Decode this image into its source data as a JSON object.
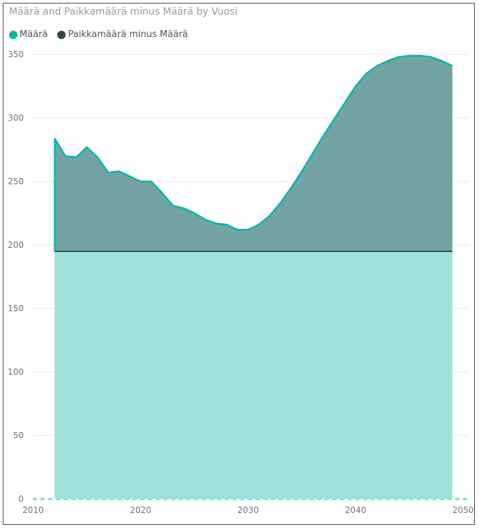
{
  "chart_data": {
    "type": "area",
    "title": "Määrä and Paikkamäärä minus Määrä by Vuosi",
    "xlabel": "",
    "ylabel": "",
    "xlim": [
      2009,
      2050.5
    ],
    "ylim": [
      0,
      350
    ],
    "x_ticks": [
      2010,
      2020,
      2030,
      2040,
      2050
    ],
    "y_ticks": [
      0,
      50,
      100,
      150,
      200,
      250,
      300,
      350
    ],
    "grid": true,
    "legend_position": "top-left",
    "stacked": true,
    "x": [
      2012,
      2013,
      2014,
      2015,
      2016,
      2017,
      2018,
      2019,
      2020,
      2021,
      2022,
      2023,
      2024,
      2025,
      2026,
      2027,
      2028,
      2029,
      2030,
      2031,
      2032,
      2033,
      2034,
      2035,
      2036,
      2037,
      2038,
      2039,
      2040,
      2041,
      2042,
      2043,
      2044,
      2045,
      2046,
      2047,
      2048,
      2049
    ],
    "series": [
      {
        "name": "Määrä",
        "color": "#01B8AA",
        "fill": "#9CE3DD",
        "values": [
          195,
          195,
          195,
          195,
          195,
          195,
          195,
          195,
          195,
          195,
          195,
          195,
          195,
          195,
          195,
          195,
          195,
          195,
          195,
          195,
          195,
          195,
          195,
          195,
          195,
          195,
          195,
          195,
          195,
          195,
          195,
          195,
          195,
          195,
          195,
          195,
          195,
          195
        ]
      },
      {
        "name": "Paikkamäärä minus Määrä",
        "color": "#374649",
        "fill": "#73A4A1",
        "values": [
          89,
          75,
          74,
          82,
          74,
          62,
          63,
          59,
          55,
          55,
          46,
          36,
          34,
          30,
          25,
          22,
          21,
          17,
          17,
          21,
          28,
          38,
          50,
          63,
          77,
          91,
          104,
          117,
          130,
          140,
          146,
          150,
          153,
          154,
          154,
          153,
          150,
          146
        ]
      }
    ]
  }
}
